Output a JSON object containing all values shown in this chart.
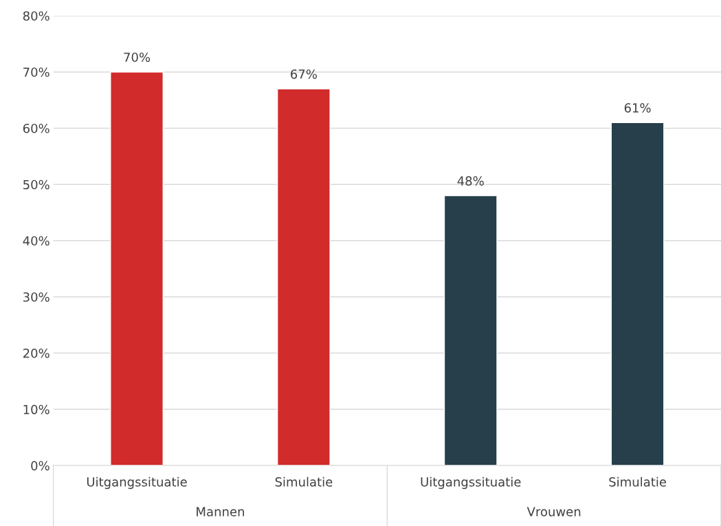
{
  "chart_data": {
    "type": "bar",
    "categories": [
      "Uitgangssituatie",
      "Simulatie",
      "Uitgangssituatie",
      "Simulatie"
    ],
    "values": [
      70,
      67,
      48,
      61
    ],
    "value_labels": [
      "70%",
      "67%",
      "48%",
      "61%"
    ],
    "colors": [
      "#d22b2b",
      "#d22b2b",
      "#263f4a",
      "#263f4a"
    ],
    "annotations": [
      "Mannen",
      "Vrouwen"
    ],
    "ylim": [
      0,
      80
    ],
    "yticks": [
      {
        "value": 0,
        "label": "0%"
      },
      {
        "value": 10,
        "label": "10%"
      },
      {
        "value": 20,
        "label": "20%"
      },
      {
        "value": 30,
        "label": "30%"
      },
      {
        "value": 40,
        "label": "40%"
      },
      {
        "value": 50,
        "label": "50%"
      },
      {
        "value": 60,
        "label": "60%"
      },
      {
        "value": 70,
        "label": "70%"
      },
      {
        "value": 80,
        "label": "80%"
      }
    ],
    "grid": "y",
    "legend": false
  }
}
